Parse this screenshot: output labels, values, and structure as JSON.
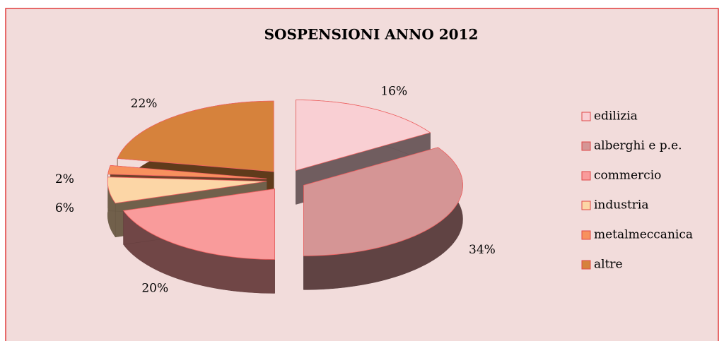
{
  "chart_data": {
    "type": "pie",
    "title": "SOSPENSIONI ANNO 2012",
    "categories": [
      "edilizia",
      "alberghi e p.e.",
      "commercio",
      "industria",
      "metalmeccanica",
      "altre"
    ],
    "values": [
      16,
      34,
      20,
      6,
      2,
      22
    ],
    "value_labels": [
      "16%",
      "34%",
      "20%",
      "6%",
      "2%",
      "22%"
    ],
    "colors": [
      "#f9cfd3",
      "#d59595",
      "#f99b9b",
      "#fcd6a6",
      "#f7915e",
      "#d6823c"
    ],
    "legend": "right"
  }
}
